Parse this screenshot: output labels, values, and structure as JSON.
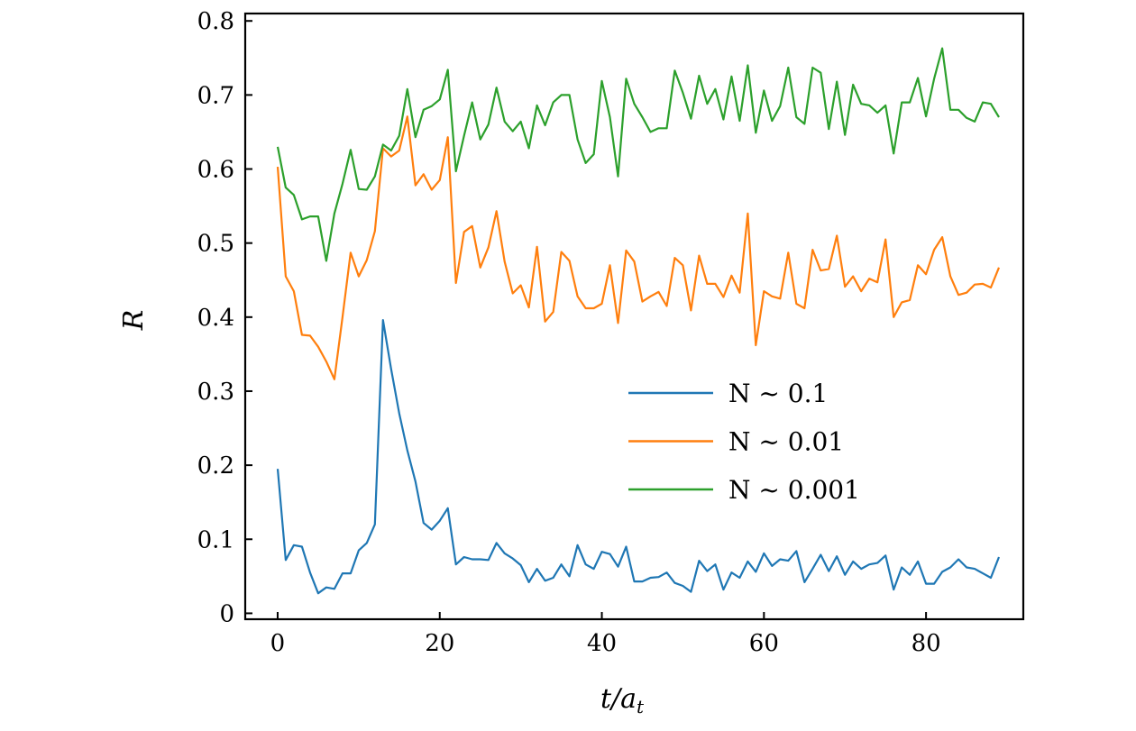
{
  "chart_data": {
    "type": "line",
    "title": "",
    "xlabel": "t/a_t",
    "xlabel_main": "t/a",
    "xlabel_sub": "t",
    "ylabel": "R",
    "xlim": [
      -4,
      92
    ],
    "ylim": [
      -0.008,
      0.81
    ],
    "xticks": [
      0,
      20,
      40,
      60,
      80
    ],
    "xtick_labels": [
      "0",
      "20",
      "40",
      "60",
      "80"
    ],
    "yticks": [
      0,
      0.1,
      0.2,
      0.3,
      0.4,
      0.5,
      0.6,
      0.7,
      0.8
    ],
    "ytick_labels": [
      "0",
      "0.1",
      "0.2",
      "0.3",
      "0.4",
      "0.5",
      "0.6",
      "0.7",
      "0.8"
    ],
    "grid": false,
    "legend_position": "center-right",
    "series": [
      {
        "name": "N ~ 0.1",
        "color": "#1f77b4",
        "values": [
          0.195,
          0.072,
          0.092,
          0.09,
          0.055,
          0.027,
          0.035,
          0.033,
          0.054,
          0.054,
          0.085,
          0.095,
          0.12,
          0.396,
          0.33,
          0.27,
          0.22,
          0.178,
          0.122,
          0.113,
          0.125,
          0.142,
          0.066,
          0.076,
          0.073,
          0.073,
          0.072,
          0.095,
          0.081,
          0.074,
          0.065,
          0.042,
          0.06,
          0.044,
          0.048,
          0.066,
          0.05,
          0.092,
          0.066,
          0.06,
          0.083,
          0.08,
          0.063,
          0.09,
          0.043,
          0.043,
          0.048,
          0.049,
          0.055,
          0.041,
          0.037,
          0.029,
          0.071,
          0.057,
          0.066,
          0.032,
          0.055,
          0.048,
          0.07,
          0.056,
          0.081,
          0.064,
          0.073,
          0.071,
          0.084,
          0.042,
          0.06,
          0.079,
          0.057,
          0.077,
          0.052,
          0.07,
          0.06,
          0.066,
          0.068,
          0.078,
          0.032,
          0.062,
          0.052,
          0.07,
          0.04,
          0.04,
          0.056,
          0.062,
          0.073,
          0.062,
          0.06,
          0.054,
          0.048,
          0.076
        ]
      },
      {
        "name": "N ~ 0.01",
        "color": "#ff7f0e",
        "values": [
          0.603,
          0.455,
          0.435,
          0.376,
          0.375,
          0.36,
          0.34,
          0.316,
          0.4,
          0.487,
          0.455,
          0.477,
          0.516,
          0.628,
          0.617,
          0.625,
          0.671,
          0.578,
          0.593,
          0.572,
          0.585,
          0.643,
          0.446,
          0.515,
          0.523,
          0.467,
          0.494,
          0.543,
          0.475,
          0.432,
          0.443,
          0.413,
          0.495,
          0.394,
          0.407,
          0.488,
          0.476,
          0.428,
          0.412,
          0.412,
          0.418,
          0.47,
          0.392,
          0.49,
          0.475,
          0.421,
          0.428,
          0.434,
          0.415,
          0.48,
          0.47,
          0.409,
          0.483,
          0.445,
          0.445,
          0.427,
          0.456,
          0.433,
          0.54,
          0.362,
          0.435,
          0.428,
          0.425,
          0.487,
          0.418,
          0.412,
          0.491,
          0.463,
          0.465,
          0.51,
          0.441,
          0.455,
          0.435,
          0.452,
          0.447,
          0.505,
          0.4,
          0.42,
          0.423,
          0.47,
          0.458,
          0.491,
          0.508,
          0.455,
          0.43,
          0.433,
          0.444,
          0.445,
          0.44,
          0.467
        ]
      },
      {
        "name": "N ~ 0.001",
        "color": "#2ca02c",
        "values": [
          0.63,
          0.575,
          0.565,
          0.532,
          0.536,
          0.536,
          0.476,
          0.54,
          0.58,
          0.626,
          0.573,
          0.572,
          0.59,
          0.633,
          0.625,
          0.645,
          0.708,
          0.643,
          0.68,
          0.685,
          0.694,
          0.734,
          0.597,
          0.645,
          0.69,
          0.64,
          0.66,
          0.71,
          0.664,
          0.651,
          0.664,
          0.628,
          0.686,
          0.659,
          0.69,
          0.7,
          0.7,
          0.64,
          0.608,
          0.62,
          0.719,
          0.67,
          0.59,
          0.722,
          0.688,
          0.67,
          0.65,
          0.655,
          0.655,
          0.733,
          0.703,
          0.668,
          0.726,
          0.688,
          0.708,
          0.667,
          0.725,
          0.665,
          0.74,
          0.649,
          0.706,
          0.665,
          0.685,
          0.737,
          0.67,
          0.661,
          0.737,
          0.73,
          0.654,
          0.718,
          0.646,
          0.714,
          0.688,
          0.686,
          0.676,
          0.686,
          0.621,
          0.69,
          0.69,
          0.723,
          0.671,
          0.722,
          0.763,
          0.68,
          0.68,
          0.669,
          0.664,
          0.69,
          0.688,
          0.67
        ]
      }
    ]
  }
}
